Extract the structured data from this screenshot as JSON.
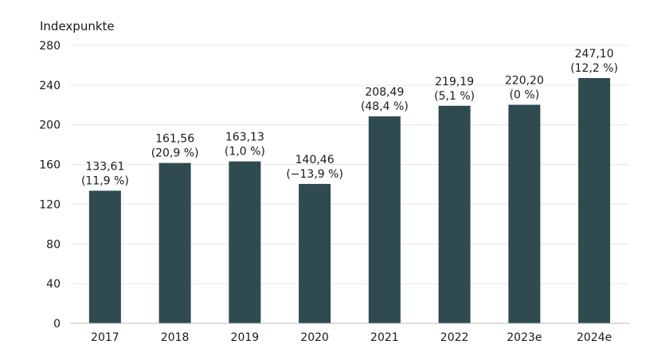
{
  "chart_data": {
    "type": "bar",
    "ylabel": "Indexpunkte",
    "ylim": [
      0,
      280
    ],
    "yticks": [
      "0",
      "40",
      "80",
      "120",
      "160",
      "200",
      "240",
      "280"
    ],
    "categories": [
      "2017",
      "2018",
      "2019",
      "2020",
      "2021",
      "2022",
      "2023e",
      "2024e"
    ],
    "values": [
      133.61,
      161.56,
      163.13,
      140.46,
      208.49,
      219.19,
      220.2,
      247.1
    ],
    "value_labels": [
      "133,61",
      "161,56",
      "163,13",
      "140,46",
      "208,49",
      "219,19",
      "220,20",
      "247,10"
    ],
    "change_labels": [
      "(11,9 %)",
      "(20,9 %)",
      "(1,0 %)",
      "(−13,9 %)",
      "(48,4 %)",
      "(5,1 %)",
      "(0 %)",
      "(12,2 %)"
    ],
    "grid": true,
    "colors": {
      "bar": "#2f4b50"
    }
  }
}
